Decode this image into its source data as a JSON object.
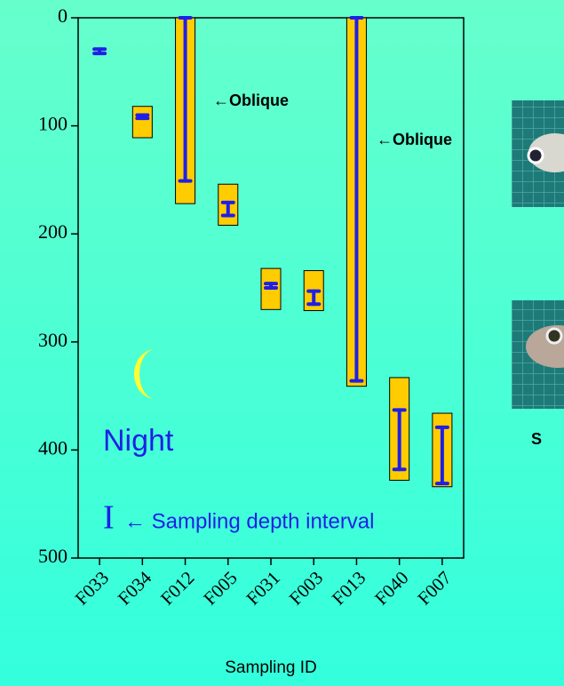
{
  "chart_data": {
    "type": "range",
    "x_label": "Sampling ID",
    "categories": [
      "F033",
      "F034",
      "F012",
      "F005",
      "F031",
      "F003",
      "F013",
      "F040",
      "F007"
    ],
    "box_top": [
      null,
      82,
      0,
      154,
      232,
      234,
      0,
      333,
      366
    ],
    "box_bottom": [
      null,
      111,
      172,
      192,
      270,
      271,
      341,
      428,
      434
    ],
    "interval_top": [
      29,
      90,
      0,
      171,
      246,
      253,
      0,
      363,
      379
    ],
    "interval_bottom": [
      33,
      93,
      151,
      183,
      250,
      265,
      336,
      418,
      431
    ],
    "box_color": "#ffcc00",
    "interval_color": "#1f1fe6",
    "ylim": [
      0,
      500
    ],
    "yticks": [
      0,
      100,
      200,
      300,
      400,
      500
    ],
    "y_inverted": true,
    "annotations": [
      "←Oblique",
      "←Oblique",
      "S"
    ],
    "night_label": "Night",
    "legend_symbol": "I",
    "legend_text": "← Sampling depth interval"
  }
}
